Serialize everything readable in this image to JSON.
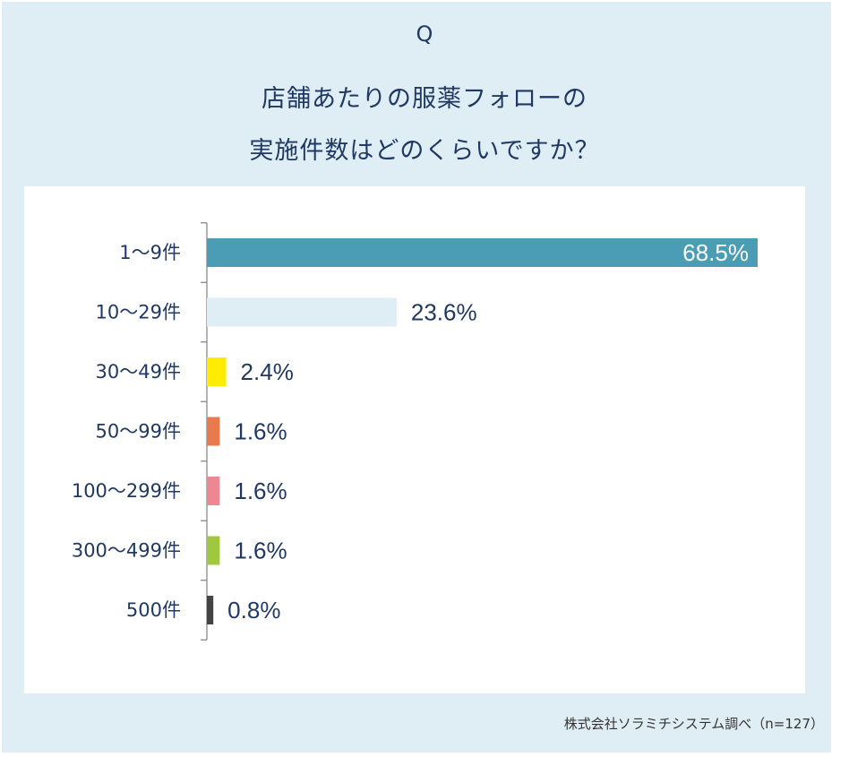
{
  "question_mark": "Q",
  "title_lines": [
    "店舗あたりの服薬フォローの",
    "実施件数はどのくらいですか？"
  ],
  "source": "株式会社ソラミチシステム調べ（n=127）",
  "colors": {
    "background": "#dfeef4",
    "text": "#1f3864",
    "bars": [
      "#4a9db5",
      "#dfeef4",
      "#ffec00",
      "#e97a4d",
      "#ee8794",
      "#9fc83e",
      "#444444"
    ]
  },
  "chart_data": {
    "type": "bar",
    "orientation": "horizontal",
    "title": "店舗あたりの服薬フォローの実施件数はどのくらいですか？",
    "categories": [
      "1〜9件",
      "10〜29件",
      "30〜49件",
      "50〜99件",
      "100〜299件",
      "300〜499件",
      "500件"
    ],
    "values": [
      68.5,
      23.6,
      2.4,
      1.6,
      1.6,
      1.6,
      0.8
    ],
    "value_labels": [
      "68.5%",
      "23.6%",
      "2.4%",
      "1.6%",
      "1.6%",
      "1.6%",
      "0.8%"
    ],
    "unit": "%",
    "xlim": [
      0,
      68.5
    ],
    "grid": false,
    "legend": "none"
  }
}
